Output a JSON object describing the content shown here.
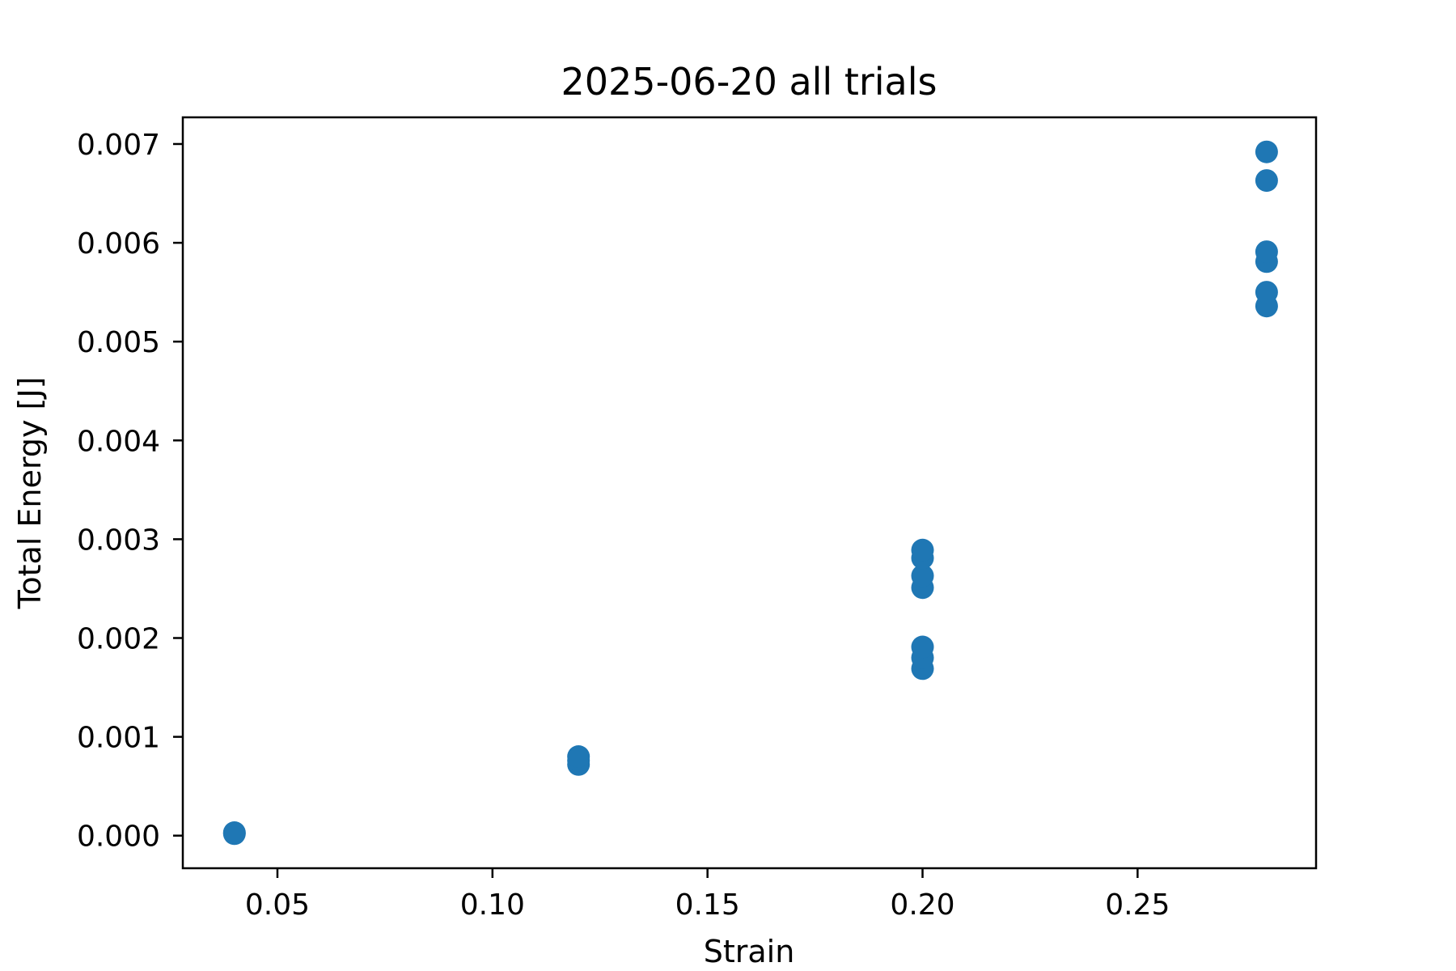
{
  "chart_data": {
    "type": "scatter",
    "title": "2025-06-20 all trials",
    "xlabel": "Strain",
    "ylabel": "Total Energy [J]",
    "xlim": [
      0.028,
      0.2915
    ],
    "ylim": [
      -0.00033,
      0.00727
    ],
    "xticks": [
      0.05,
      0.1,
      0.15,
      0.2,
      0.25
    ],
    "xtick_labels": [
      "0.05",
      "0.10",
      "0.15",
      "0.20",
      "0.25"
    ],
    "yticks": [
      0.0,
      0.001,
      0.002,
      0.003,
      0.004,
      0.005,
      0.006,
      0.007
    ],
    "ytick_labels": [
      "0.000",
      "0.001",
      "0.002",
      "0.003",
      "0.004",
      "0.005",
      "0.006",
      "0.007"
    ],
    "grid": false,
    "color": "#1f77b4",
    "series": [
      {
        "points": [
          {
            "x": 0.04,
            "y": 2e-05
          },
          {
            "x": 0.04,
            "y": 3e-05
          },
          {
            "x": 0.12,
            "y": 0.00072
          },
          {
            "x": 0.12,
            "y": 0.00076
          },
          {
            "x": 0.12,
            "y": 0.0008
          },
          {
            "x": 0.2,
            "y": 0.00169
          },
          {
            "x": 0.2,
            "y": 0.0018
          },
          {
            "x": 0.2,
            "y": 0.00191
          },
          {
            "x": 0.2,
            "y": 0.00251
          },
          {
            "x": 0.2,
            "y": 0.00263
          },
          {
            "x": 0.2,
            "y": 0.00281
          },
          {
            "x": 0.2,
            "y": 0.00289
          },
          {
            "x": 0.28,
            "y": 0.00536
          },
          {
            "x": 0.28,
            "y": 0.0055
          },
          {
            "x": 0.28,
            "y": 0.00581
          },
          {
            "x": 0.28,
            "y": 0.00591
          },
          {
            "x": 0.28,
            "y": 0.00663
          },
          {
            "x": 0.28,
            "y": 0.00692
          }
        ]
      }
    ]
  }
}
